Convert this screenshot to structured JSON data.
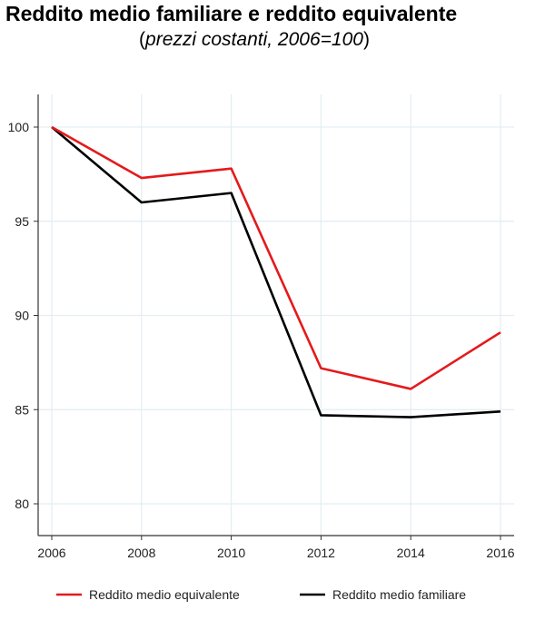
{
  "title": {
    "line1": "Reddito medio familiare e reddito equivalente",
    "line2_open": "(",
    "line2_italic": "prezzi costanti, 2006=100",
    "line2_close": ")"
  },
  "chart_data": {
    "type": "line",
    "x": [
      "2006",
      "2008",
      "2010",
      "2012",
      "2014",
      "2016"
    ],
    "ylim": [
      79,
      101.5
    ],
    "yticks": [
      80,
      85,
      90,
      95,
      100
    ],
    "grid": true,
    "legend_position": "bottom",
    "series": [
      {
        "name": "Reddito medio equivalente",
        "color": "#e41a1c",
        "values": [
          100,
          97.3,
          97.8,
          87.2,
          86.1,
          89.1
        ]
      },
      {
        "name": "Reddito medio familiare",
        "color": "#000000",
        "values": [
          100,
          96.0,
          96.5,
          84.7,
          84.6,
          84.9
        ]
      }
    ]
  }
}
